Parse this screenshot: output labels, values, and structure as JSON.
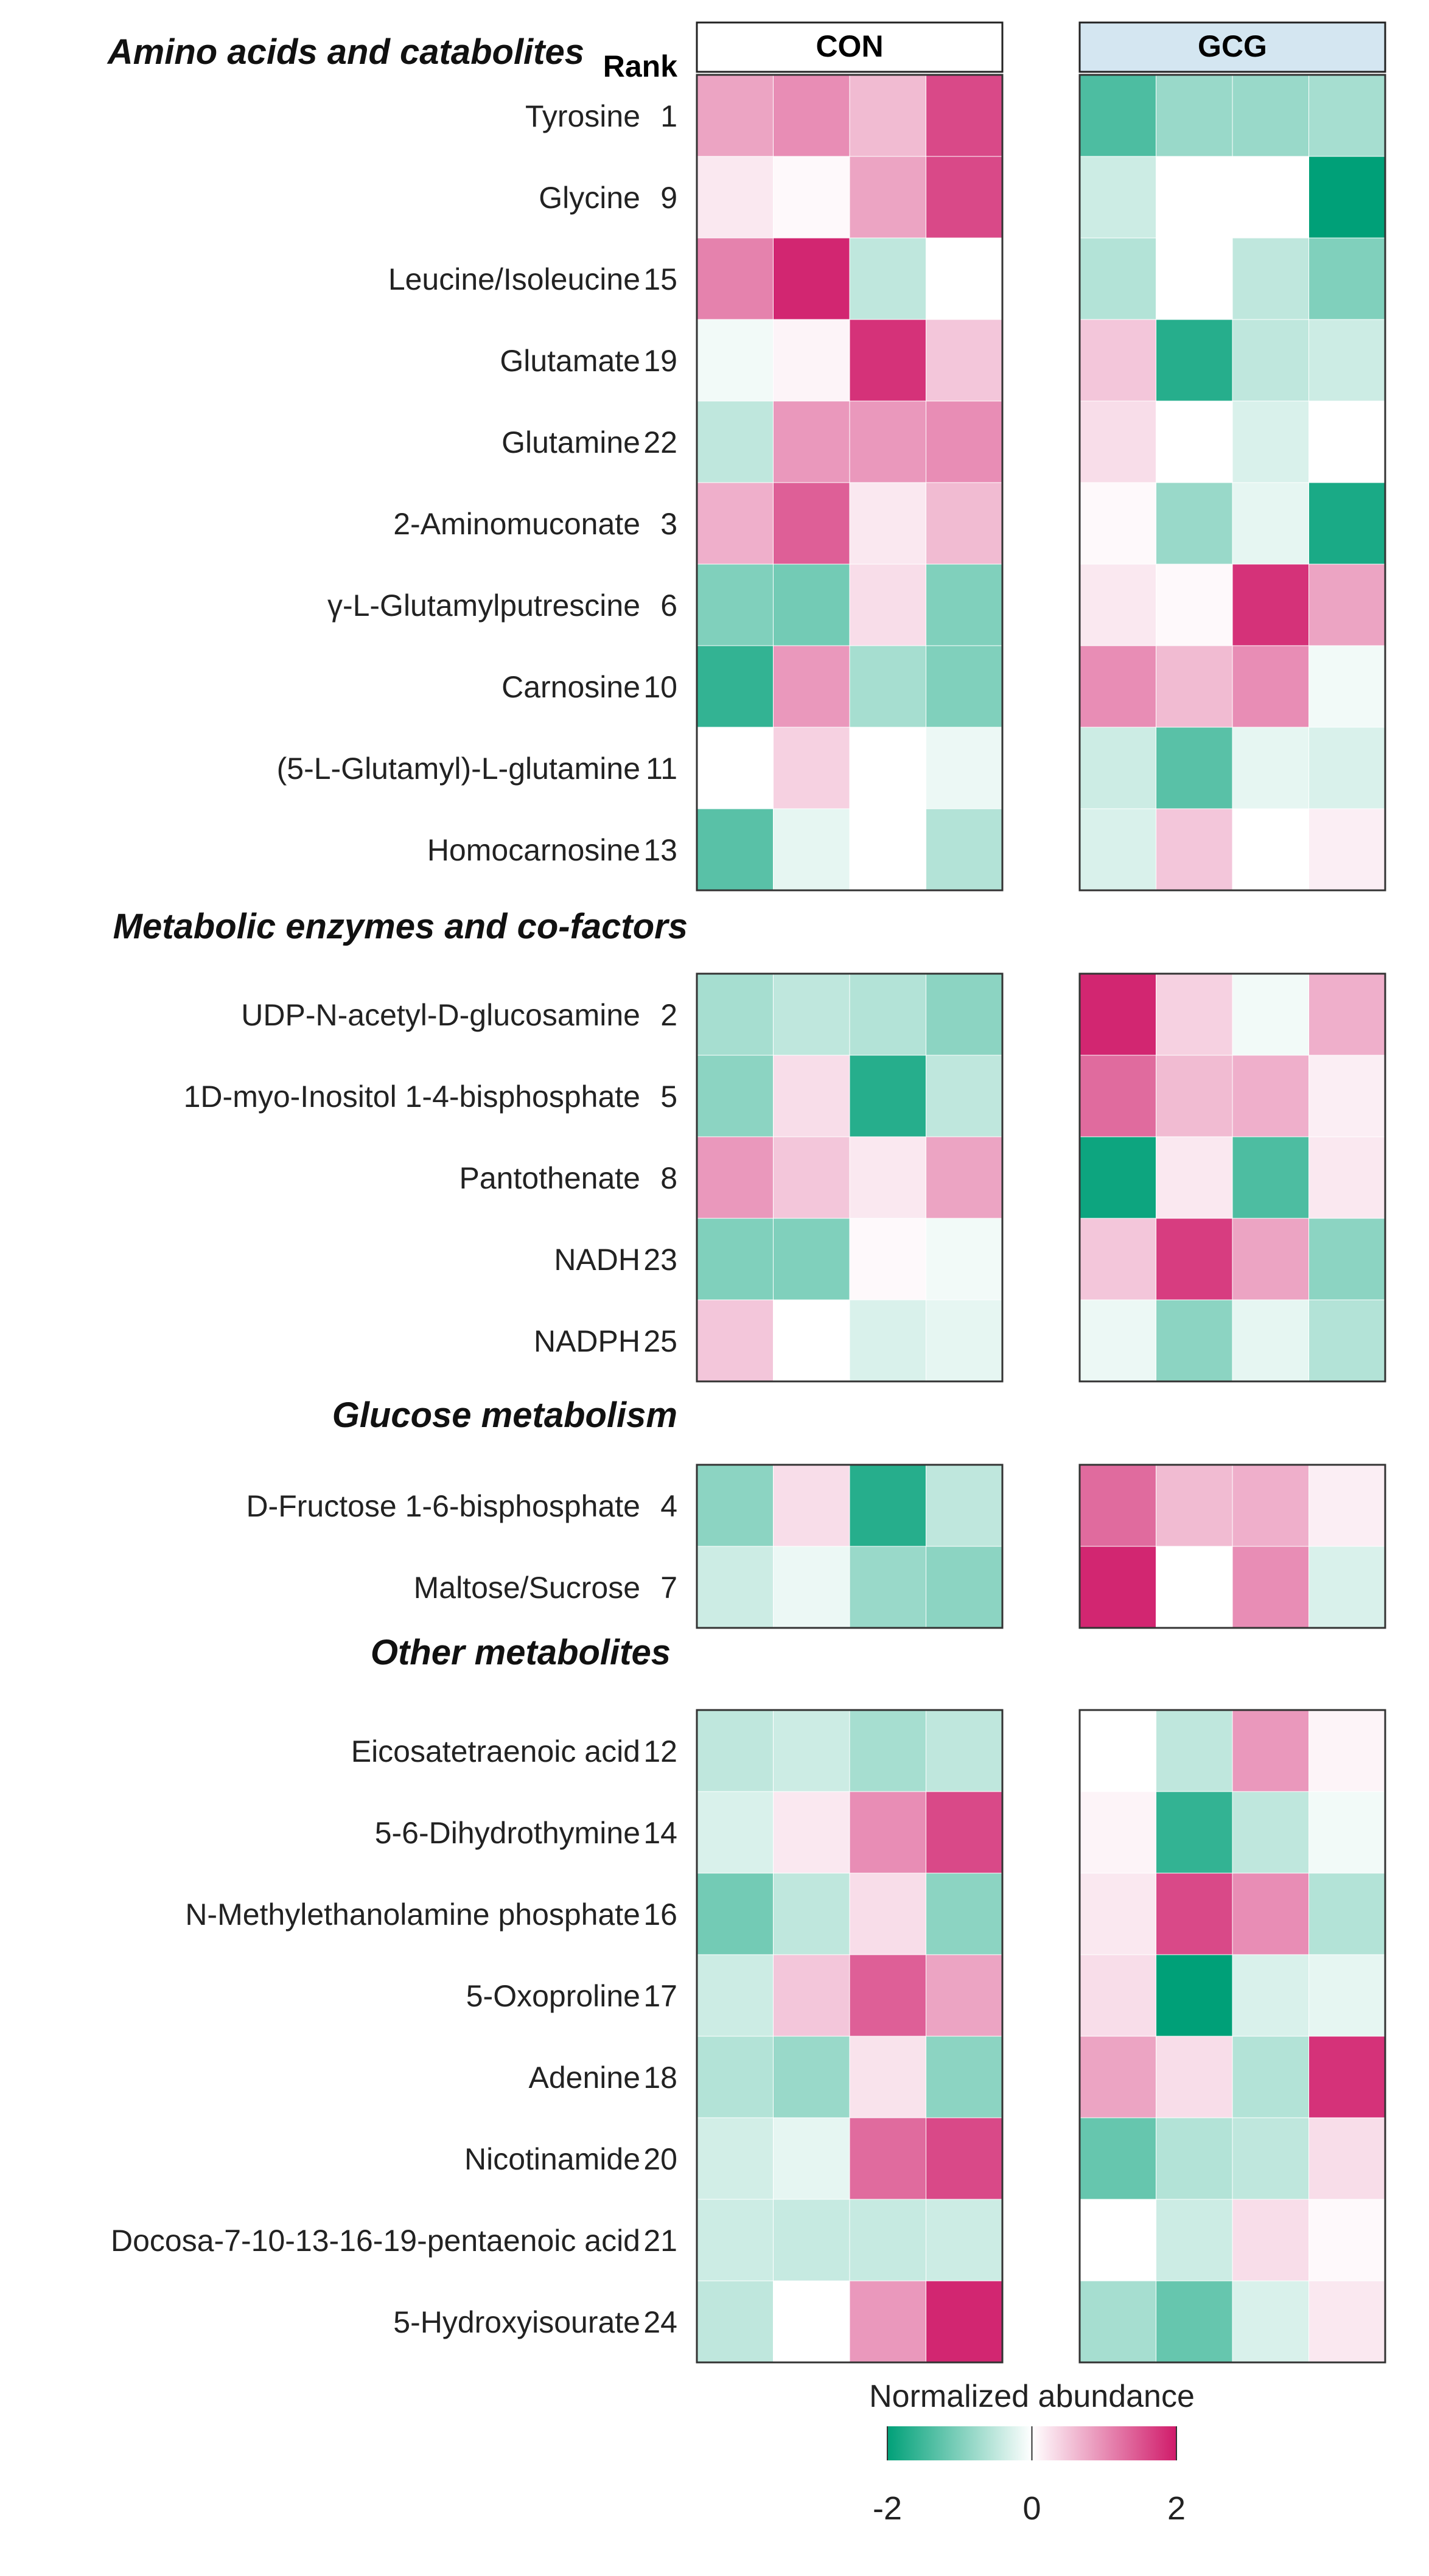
{
  "chart_data": {
    "type": "heatmap",
    "rank_label": "Rank",
    "groups": [
      {
        "name": "CON",
        "color": "#ffffff"
      },
      {
        "name": "GCG",
        "color": "#d4e6f1"
      }
    ],
    "columns_per_group": 4,
    "sections": [
      {
        "title": "Amino acids and catabolites",
        "rows": [
          {
            "label": "Tyrosine",
            "rank": "1",
            "con": [
              0.8,
              1.0,
              0.6,
              1.6
            ],
            "gcg": [
              -1.4,
              -0.8,
              -0.8,
              -0.7
            ]
          },
          {
            "label": "Glycine",
            "rank": "9",
            "con": [
              0.2,
              0.05,
              0.8,
              1.6
            ],
            "gcg": [
              -0.4,
              0.0,
              0.0,
              -2.0
            ]
          },
          {
            "label": "Leucine/Isoleucine",
            "rank": "15",
            "con": [
              1.1,
              1.9,
              -0.5,
              0.0
            ],
            "gcg": [
              -0.6,
              0.0,
              -0.5,
              -1.0
            ]
          },
          {
            "label": "Glutamate",
            "rank": "19",
            "con": [
              -0.1,
              0.1,
              1.8,
              0.5
            ],
            "gcg": [
              0.5,
              -1.7,
              -0.5,
              -0.4
            ]
          },
          {
            "label": "Glutamine",
            "rank": "22",
            "con": [
              -0.5,
              0.9,
              0.9,
              1.0
            ],
            "gcg": [
              0.3,
              0.0,
              -0.3,
              0.0
            ]
          },
          {
            "label": "2-Aminomuconate",
            "rank": "3",
            "con": [
              0.7,
              1.4,
              0.2,
              0.6
            ],
            "gcg": [
              0.05,
              -0.8,
              -0.2,
              -1.8
            ]
          },
          {
            "label": "γ-L-Glutamylputrescine",
            "rank": "6",
            "con": [
              -1.0,
              -1.1,
              0.3,
              -1.0
            ],
            "gcg": [
              0.2,
              0.05,
              1.8,
              0.8
            ]
          },
          {
            "label": "Carnosine",
            "rank": "10",
            "con": [
              -1.6,
              0.9,
              -0.7,
              -1.0
            ],
            "gcg": [
              1.0,
              0.6,
              1.0,
              -0.1
            ]
          },
          {
            "label": "(5-L-Glutamyl)-L-glutamine",
            "rank": "11",
            "con": [
              0.0,
              0.4,
              0.0,
              -0.15
            ],
            "gcg": [
              -0.4,
              -1.3,
              -0.2,
              -0.3
            ]
          },
          {
            "label": "Homocarnosine",
            "rank": "13",
            "con": [
              -1.3,
              -0.2,
              0.0,
              -0.6
            ],
            "gcg": [
              -0.3,
              0.5,
              0.0,
              0.15
            ]
          }
        ]
      },
      {
        "title": "Metabolic enzymes and co-factors",
        "rows": [
          {
            "label": "UDP-N-acetyl-D-glucosamine",
            "rank": "2",
            "con": [
              -0.7,
              -0.5,
              -0.6,
              -0.9
            ],
            "gcg": [
              1.9,
              0.4,
              -0.1,
              0.7
            ]
          },
          {
            "label": "1D-myo-Inositol 1-4-bisphosphate",
            "rank": "5",
            "con": [
              -0.9,
              0.3,
              -1.7,
              -0.5
            ],
            "gcg": [
              1.3,
              0.6,
              0.7,
              0.15
            ]
          },
          {
            "label": "Pantothenate",
            "rank": "8",
            "con": [
              0.9,
              0.5,
              0.2,
              0.8
            ],
            "gcg": [
              -1.9,
              0.2,
              -1.4,
              0.2
            ]
          },
          {
            "label": "NADH",
            "rank": "23",
            "con": [
              -1.0,
              -1.0,
              0.05,
              -0.1
            ],
            "gcg": [
              0.5,
              1.7,
              0.8,
              -0.9
            ]
          },
          {
            "label": "NADPH",
            "rank": "25",
            "con": [
              0.5,
              0.0,
              -0.3,
              -0.2
            ],
            "gcg": [
              -0.15,
              -0.9,
              -0.2,
              -0.6
            ]
          }
        ]
      },
      {
        "title": "Glucose metabolism",
        "rows": [
          {
            "label": "D-Fructose 1-6-bisphosphate",
            "rank": "4",
            "con": [
              -0.9,
              0.3,
              -1.7,
              -0.5
            ],
            "gcg": [
              1.3,
              0.6,
              0.7,
              0.15
            ]
          },
          {
            "label": "Maltose/Sucrose",
            "rank": "7",
            "con": [
              -0.4,
              -0.15,
              -0.8,
              -0.9
            ],
            "gcg": [
              1.9,
              0.0,
              1.0,
              -0.3
            ]
          }
        ]
      },
      {
        "title": "Other metabolites",
        "rows": [
          {
            "label": "Eicosatetraenoic acid",
            "rank": "12",
            "con": [
              -0.5,
              -0.4,
              -0.7,
              -0.5
            ],
            "gcg": [
              0.0,
              -0.5,
              0.9,
              0.1
            ]
          },
          {
            "label": "5-6-Dihydrothymine",
            "rank": "14",
            "con": [
              -0.3,
              0.2,
              1.0,
              1.6
            ],
            "gcg": [
              0.1,
              -1.6,
              -0.5,
              -0.1
            ]
          },
          {
            "label": "N-Methylethanolamine phosphate",
            "rank": "16",
            "con": [
              -1.1,
              -0.5,
              0.3,
              -0.9
            ],
            "gcg": [
              0.2,
              1.6,
              1.0,
              -0.6
            ]
          },
          {
            "label": "5-Oxoproline",
            "rank": "17",
            "con": [
              -0.4,
              0.5,
              1.4,
              0.8
            ],
            "gcg": [
              0.3,
              -2.0,
              -0.3,
              -0.2
            ]
          },
          {
            "label": "Adenine",
            "rank": "18",
            "con": [
              -0.6,
              -0.8,
              0.25,
              -0.9
            ],
            "gcg": [
              0.8,
              0.3,
              -0.6,
              1.8
            ]
          },
          {
            "label": "Nicotinamide",
            "rank": "20",
            "con": [
              -0.35,
              -0.2,
              1.3,
              1.6
            ],
            "gcg": [
              -1.2,
              -0.6,
              -0.5,
              0.3
            ]
          },
          {
            "label": "Docosa-7-10-13-16-19-pentaenoic acid",
            "rank": "21",
            "con": [
              -0.4,
              -0.45,
              -0.45,
              -0.4
            ],
            "gcg": [
              0.0,
              -0.4,
              0.3,
              0.05
            ]
          },
          {
            "label": "5-Hydroxyisourate",
            "rank": "24",
            "con": [
              -0.5,
              0.0,
              0.9,
              1.9
            ],
            "gcg": [
              -0.7,
              -1.2,
              -0.3,
              0.2
            ]
          }
        ]
      }
    ],
    "colorbar": {
      "title": "Normalized abundance",
      "min": -2,
      "max": 2,
      "ticks": [
        -2,
        0,
        2
      ],
      "tick_labels": [
        "-2",
        "0",
        "2"
      ],
      "low_color": "#00a078",
      "mid_color": "#ffffff",
      "high_color": "#d01b6a"
    }
  }
}
